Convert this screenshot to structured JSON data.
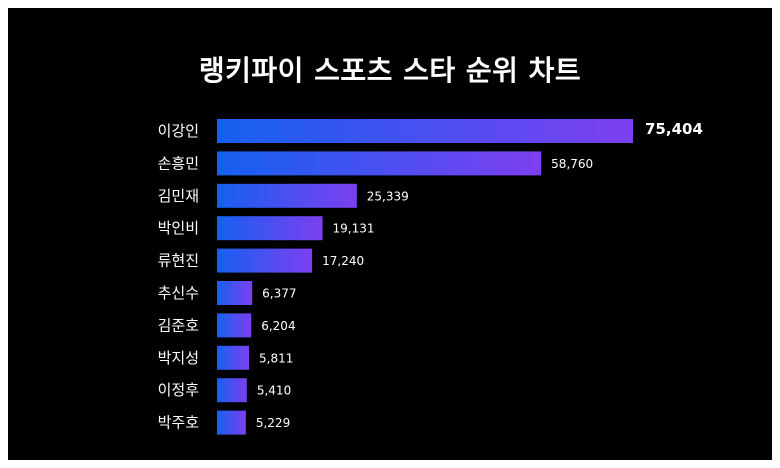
{
  "colors": {
    "background": "#000000",
    "bar_start": "#1560f0",
    "bar_end": "#7d3ff0",
    "text": "#ffffff"
  },
  "chart_data": {
    "type": "bar",
    "orientation": "horizontal",
    "title": "랭키파이 스포츠 스타 순위 차트",
    "categories": [
      "이강인",
      "손흥민",
      "김민재",
      "박인비",
      "류현진",
      "추신수",
      "김준호",
      "박지성",
      "이정후",
      "박주호"
    ],
    "values": [
      75404,
      58760,
      25339,
      19131,
      17240,
      6377,
      6204,
      5811,
      5410,
      5229
    ],
    "value_labels": [
      "75,404",
      "58,760",
      "25,339",
      "19,131",
      "17,240",
      "6,377",
      "6,204",
      "5,811",
      "5,410",
      "5,229"
    ],
    "xlabel": "",
    "ylabel": "",
    "xlim": [
      0,
      75404
    ],
    "grid": false,
    "legend": "none"
  }
}
